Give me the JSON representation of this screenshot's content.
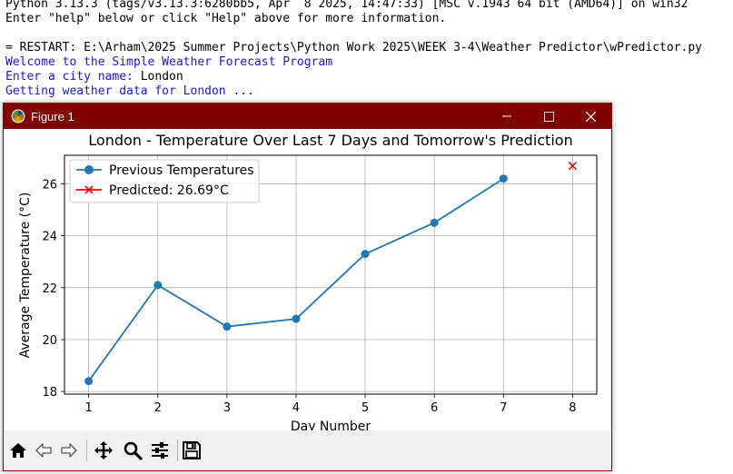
{
  "shell": {
    "lines": [
      "Python 3.13.3 (tags/v3.13.3:6280bb5, Apr  8 2025, 14:47:33) [MSC v.1943 64 bit (AMD64)] on win32",
      "Enter \"help\" below or click \"Help\" above for more information.",
      "",
      "= RESTART: E:\\Arham\\2025 Summer Projects\\Python Work 2025\\WEEK 3-4\\Weather Predictor\\wPredictor.py",
      "Welcome to the Simple Weather Forecast Program",
      "Enter a city name: London",
      "Getting weather data for London ..."
    ],
    "input_prompt": "Enter a city name: ",
    "input_value": "London"
  },
  "figure_window": {
    "title": "Figure 1",
    "buttons": [
      "minimize-icon",
      "maximize-icon",
      "close-icon"
    ]
  },
  "toolbar": {
    "tools": [
      "home-icon",
      "back-arrow-icon",
      "forward-arrow-icon",
      "pan-icon",
      "zoom-icon",
      "configure-subplots-icon",
      "save-icon"
    ]
  },
  "colors": {
    "titlebar": "#800000",
    "series_blue": "#1f77b4",
    "predicted_red": "#ff0000",
    "shell_blue": "#1a1ad6"
  },
  "chart_data": {
    "type": "line",
    "title": "London - Temperature Over Last 7 Days and Tomorrow's Prediction",
    "xlabel": "Day Number",
    "ylabel": "Average Temperature (°C)",
    "xlim": [
      0.65,
      8.35
    ],
    "ylim": [
      17.9,
      27.1
    ],
    "xticks": [
      1,
      2,
      3,
      4,
      5,
      6,
      7,
      8
    ],
    "yticks": [
      18,
      20,
      22,
      24,
      26
    ],
    "grid": true,
    "legend_position": "top-left",
    "series": [
      {
        "name": "Previous Temperatures",
        "marker": "circle",
        "x": [
          1,
          2,
          3,
          4,
          5,
          6,
          7
        ],
        "values": [
          18.4,
          22.1,
          20.5,
          20.8,
          23.3,
          24.5,
          26.2
        ]
      },
      {
        "name": "Predicted: 26.69°C",
        "marker": "x",
        "x": [
          8
        ],
        "values": [
          26.69
        ]
      }
    ]
  }
}
